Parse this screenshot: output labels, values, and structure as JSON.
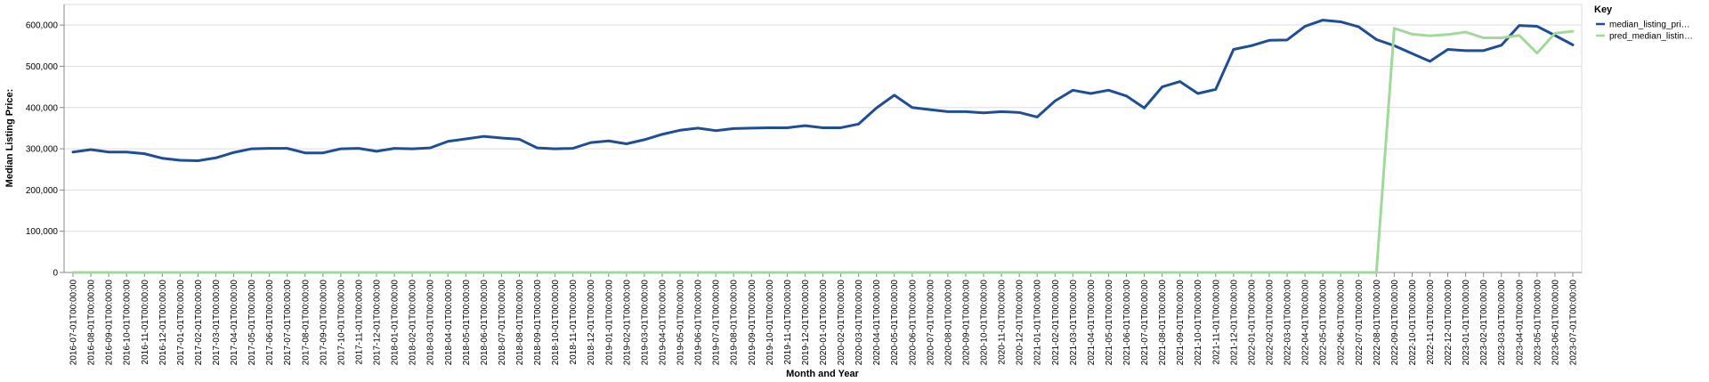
{
  "chart_data": {
    "type": "line",
    "xlabel": "Month and Year",
    "ylabel": "Median Listing Price:",
    "ylim": [
      0,
      650000
    ],
    "yticks": [
      0,
      100000,
      200000,
      300000,
      400000,
      500000,
      600000
    ],
    "ytick_labels": [
      "0",
      "100,000",
      "200,000",
      "300,000",
      "400,000",
      "500,000",
      "600,000"
    ],
    "grid": true,
    "legend": {
      "title": "Key",
      "placement": "right"
    },
    "x": [
      "2016-07-01T00:00:00",
      "2016-08-01T00:00:00",
      "2016-09-01T00:00:00",
      "2016-10-01T00:00:00",
      "2016-11-01T00:00:00",
      "2016-12-01T00:00:00",
      "2017-01-01T00:00:00",
      "2017-02-01T00:00:00",
      "2017-03-01T00:00:00",
      "2017-04-01T00:00:00",
      "2017-05-01T00:00:00",
      "2017-06-01T00:00:00",
      "2017-07-01T00:00:00",
      "2017-08-01T00:00:00",
      "2017-09-01T00:00:00",
      "2017-10-01T00:00:00",
      "2017-11-01T00:00:00",
      "2017-12-01T00:00:00",
      "2018-01-01T00:00:00",
      "2018-02-01T00:00:00",
      "2018-03-01T00:00:00",
      "2018-04-01T00:00:00",
      "2018-05-01T00:00:00",
      "2018-06-01T00:00:00",
      "2018-07-01T00:00:00",
      "2018-08-01T00:00:00",
      "2018-09-01T00:00:00",
      "2018-10-01T00:00:00",
      "2018-11-01T00:00:00",
      "2018-12-01T00:00:00",
      "2019-01-01T00:00:00",
      "2019-02-01T00:00:00",
      "2019-03-01T00:00:00",
      "2019-04-01T00:00:00",
      "2019-05-01T00:00:00",
      "2019-06-01T00:00:00",
      "2019-07-01T00:00:00",
      "2019-08-01T00:00:00",
      "2019-09-01T00:00:00",
      "2019-10-01T00:00:00",
      "2019-11-01T00:00:00",
      "2019-12-01T00:00:00",
      "2020-01-01T00:00:00",
      "2020-02-01T00:00:00",
      "2020-03-01T00:00:00",
      "2020-04-01T00:00:00",
      "2020-05-01T00:00:00",
      "2020-06-01T00:00:00",
      "2020-07-01T00:00:00",
      "2020-08-01T00:00:00",
      "2020-09-01T00:00:00",
      "2020-10-01T00:00:00",
      "2020-11-01T00:00:00",
      "2020-12-01T00:00:00",
      "2021-01-01T00:00:00",
      "2021-02-01T00:00:00",
      "2021-03-01T00:00:00",
      "2021-04-01T00:00:00",
      "2021-05-01T00:00:00",
      "2021-06-01T00:00:00",
      "2021-07-01T00:00:00",
      "2021-08-01T00:00:00",
      "2021-09-01T00:00:00",
      "2021-10-01T00:00:00",
      "2021-11-01T00:00:00",
      "2021-12-01T00:00:00",
      "2022-01-01T00:00:00",
      "2022-02-01T00:00:00",
      "2022-03-01T00:00:00",
      "2022-04-01T00:00:00",
      "2022-05-01T00:00:00",
      "2022-06-01T00:00:00",
      "2022-07-01T00:00:00",
      "2022-08-01T00:00:00",
      "2022-09-01T00:00:00",
      "2022-10-01T00:00:00",
      "2022-11-01T00:00:00",
      "2022-12-01T00:00:00",
      "2023-01-01T00:00:00",
      "2023-02-01T00:00:00",
      "2023-03-01T00:00:00",
      "2023-04-01T00:00:00",
      "2023-05-01T00:00:00",
      "2023-06-01T00:00:00",
      "2023-07-01T00:00:00"
    ],
    "series": [
      {
        "name": "median_listing_pri…",
        "color": "#1f4e96",
        "values": [
          292000,
          298000,
          292000,
          292000,
          288000,
          277000,
          272000,
          271000,
          278000,
          291000,
          300000,
          301000,
          301000,
          290000,
          290000,
          300000,
          301000,
          294000,
          301000,
          300000,
          302000,
          318000,
          324000,
          330000,
          326000,
          323000,
          302000,
          300000,
          301000,
          315000,
          319000,
          312000,
          322000,
          335000,
          345000,
          350000,
          344000,
          349000,
          350000,
          351000,
          351000,
          356000,
          351000,
          351000,
          360000,
          399000,
          430000,
          400000,
          395000,
          390000,
          390000,
          387000,
          390000,
          388000,
          377000,
          416000,
          442000,
          434000,
          442000,
          428000,
          399000,
          450000,
          463000,
          434000,
          444000,
          541000,
          550000,
          563000,
          564000,
          597000,
          612000,
          608000,
          596000,
          565000,
          550000,
          531000,
          512000,
          541000,
          538000,
          538000,
          551000,
          599000,
          597000,
          575000,
          552000
        ]
      },
      {
        "name": "pred_median_listin…",
        "color": "#a1d99b",
        "values": [
          0,
          0,
          0,
          0,
          0,
          0,
          0,
          0,
          0,
          0,
          0,
          0,
          0,
          0,
          0,
          0,
          0,
          0,
          0,
          0,
          0,
          0,
          0,
          0,
          0,
          0,
          0,
          0,
          0,
          0,
          0,
          0,
          0,
          0,
          0,
          0,
          0,
          0,
          0,
          0,
          0,
          0,
          0,
          0,
          0,
          0,
          0,
          0,
          0,
          0,
          0,
          0,
          0,
          0,
          0,
          0,
          0,
          0,
          0,
          0,
          0,
          0,
          0,
          0,
          0,
          0,
          0,
          0,
          0,
          0,
          0,
          0,
          0,
          0,
          592000,
          578000,
          574000,
          577000,
          583000,
          569000,
          569000,
          575000,
          532000,
          580000,
          585000
        ]
      }
    ]
  }
}
